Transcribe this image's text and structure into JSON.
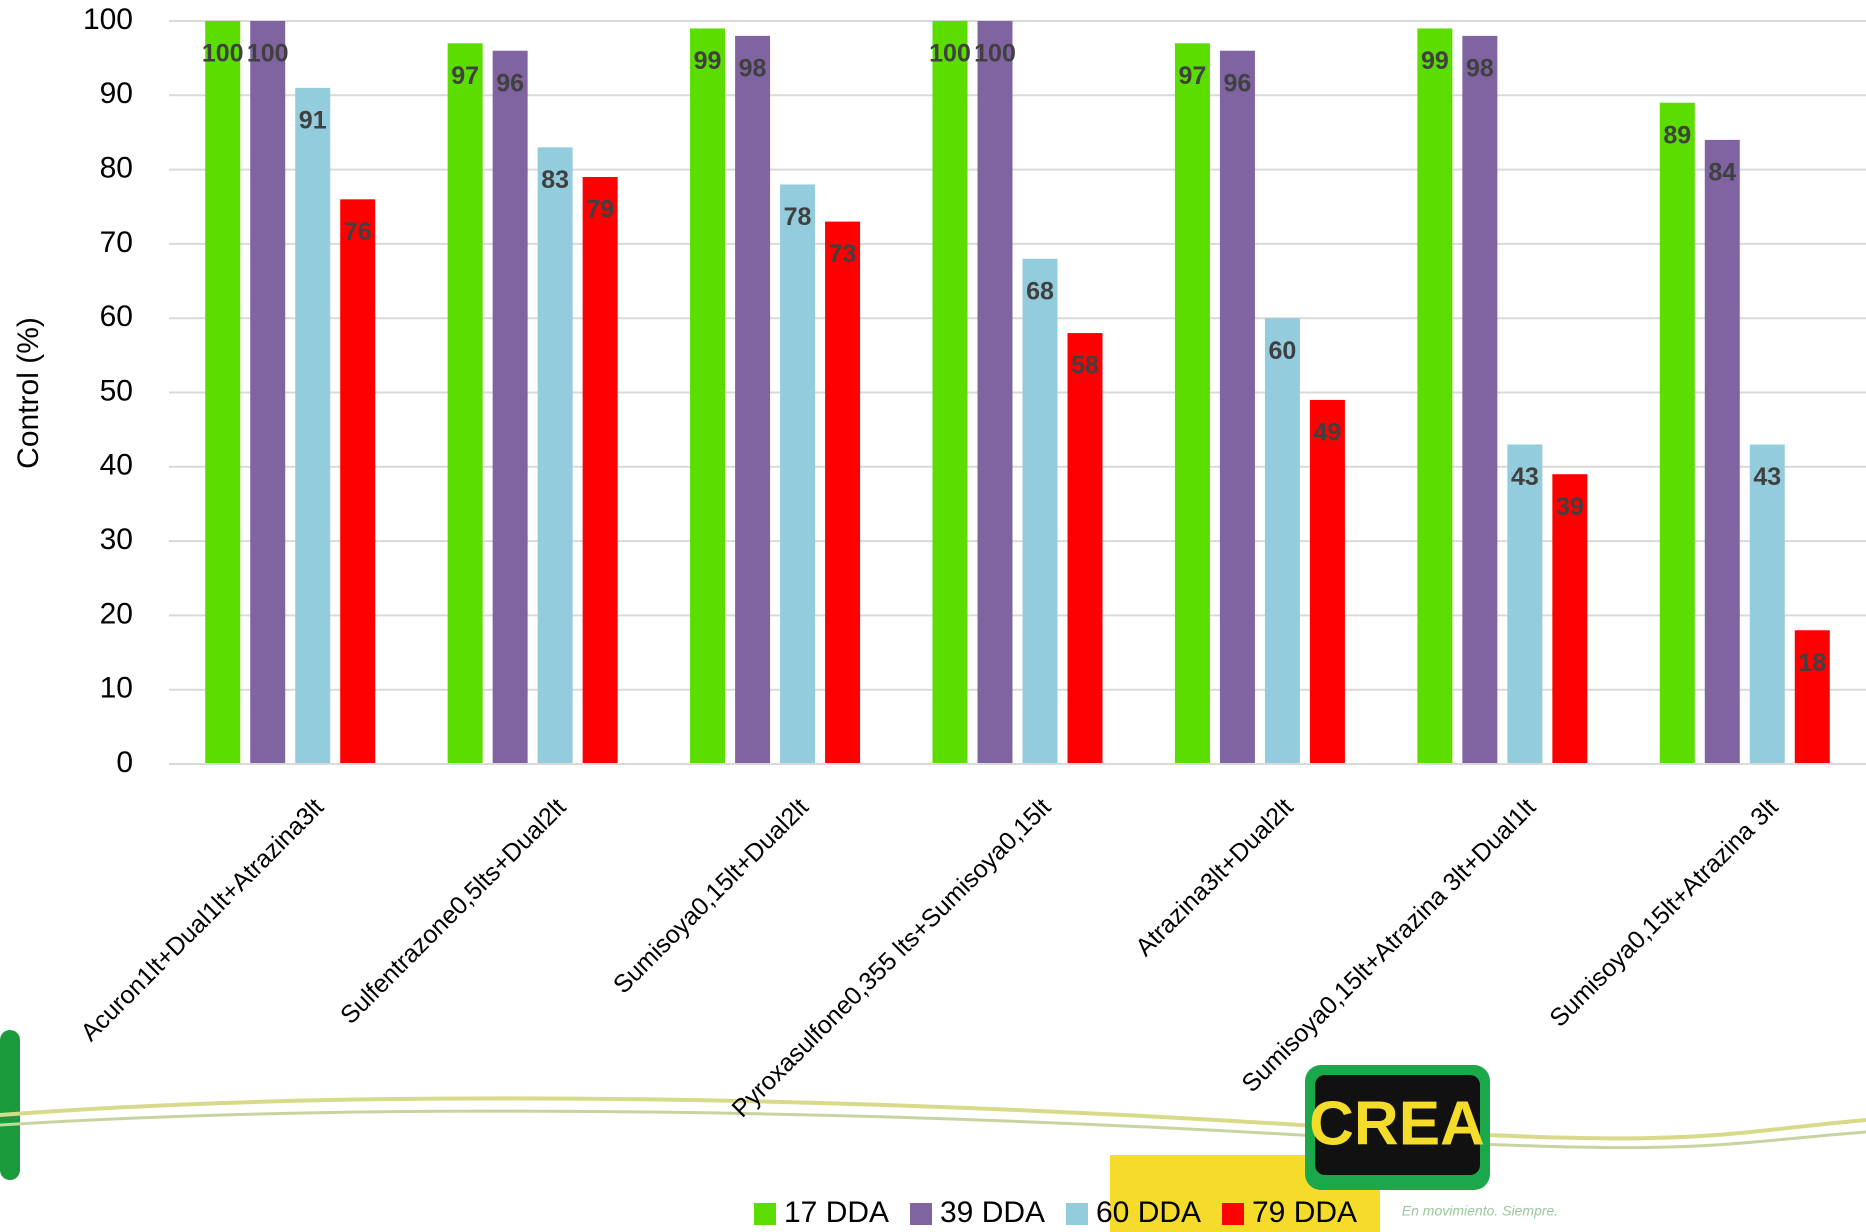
{
  "chart_data": {
    "type": "bar",
    "y_label": "Control (%)",
    "categories": [
      "Acuron1lt+Dual1lt+Atrazina3lt",
      "Sulfentrazone0,5lts+Dual2lt",
      "Sumisoya0,15lt+Dual2lt",
      "Pyroxasulfone0,355 lts+Sumisoya0,15lt",
      "Atrazina3lt+Dual2lt",
      "Sumisoya0,15lt+Atrazina 3lt+Dual1lt",
      "Sumisoya0,15lt+Atrazina 3lt"
    ],
    "series": [
      {
        "name": "17 DDA",
        "color": "#5bdd00",
        "values": [
          100,
          97,
          99,
          100,
          97,
          99,
          89
        ]
      },
      {
        "name": "39 DDA",
        "color": "#8064a2",
        "values": [
          100,
          96,
          98,
          100,
          96,
          98,
          84
        ]
      },
      {
        "name": "60 DDA",
        "color": "#93cddd",
        "values": [
          91,
          83,
          78,
          68,
          60,
          43,
          43
        ]
      },
      {
        "name": "79 DDA",
        "color": "#ff0000",
        "values": [
          76,
          79,
          73,
          58,
          49,
          39,
          18
        ]
      }
    ],
    "ylim": [
      0,
      100
    ],
    "yticks": [
      0,
      10,
      20,
      30,
      40,
      50,
      60,
      70,
      80,
      90,
      100
    ],
    "grid": true,
    "legend": "bottom"
  },
  "logo": {
    "text": "CREA",
    "tagline": "En movimiento. Siempre."
  }
}
